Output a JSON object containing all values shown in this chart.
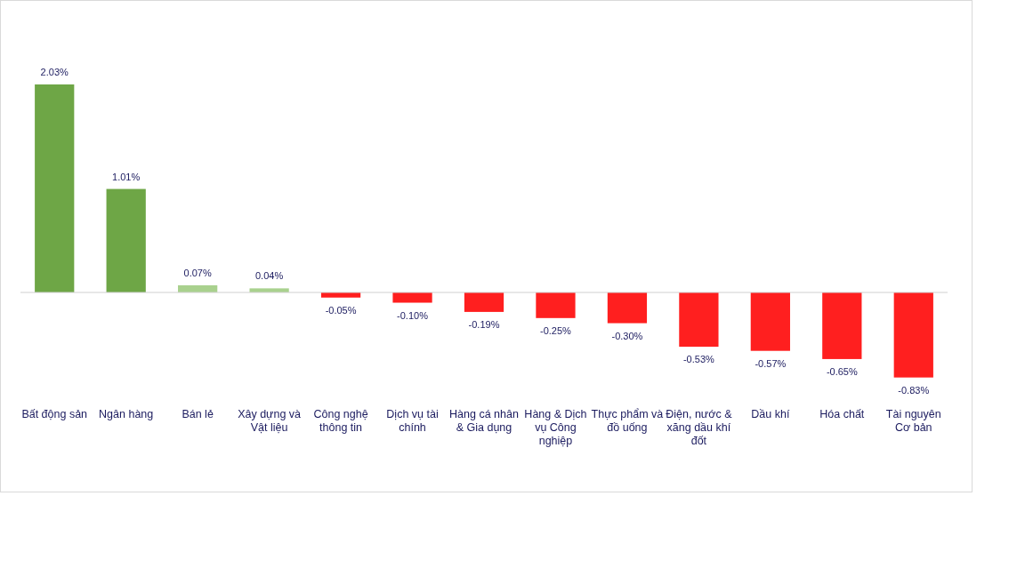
{
  "chart_data": {
    "type": "bar",
    "categories": [
      "Bất động sản",
      "Ngân hàng",
      "Bán lẻ",
      "Xây dựng và Vật liệu",
      "Công nghệ thông tin",
      "Dịch vụ tài chính",
      "Hàng cá nhân & Gia dụng",
      "Hàng & Dịch vụ Công nghiệp",
      "Thực phẩm và đồ uống",
      "Điện, nước & xăng dầu khí đốt",
      "Dầu khí",
      "Hóa chất",
      "Tài nguyên Cơ bản"
    ],
    "values": [
      2.03,
      1.01,
      0.07,
      0.04,
      -0.05,
      -0.1,
      -0.19,
      -0.25,
      -0.3,
      -0.53,
      -0.57,
      -0.65,
      -0.83
    ],
    "value_labels": [
      "2.03%",
      "1.01%",
      "0.07%",
      "0.04%",
      "-0.05%",
      "-0.10%",
      "-0.19%",
      "-0.25%",
      "-0.30%",
      "-0.53%",
      "-0.57%",
      "-0.65%",
      "-0.83%"
    ],
    "colors": [
      "#6ea646",
      "#6ea646",
      "#a9d18e",
      "#a9d18e",
      "#ff1f1f",
      "#ff1f1f",
      "#ff1f1f",
      "#ff1f1f",
      "#ff1f1f",
      "#ff1f1f",
      "#ff1f1f",
      "#ff1f1f",
      "#ff1f1f"
    ]
  }
}
